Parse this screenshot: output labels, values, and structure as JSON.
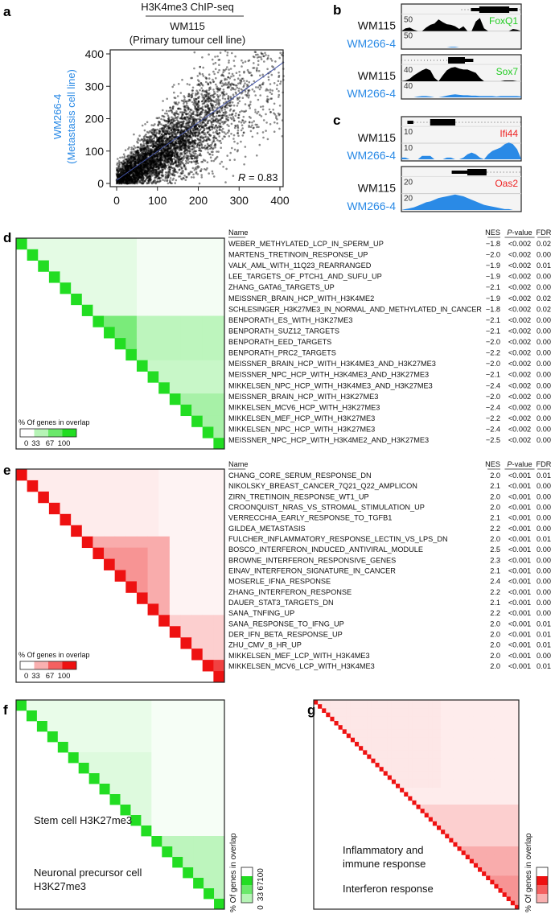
{
  "panels": {
    "a": "a",
    "b": "b",
    "c": "c",
    "d": "d",
    "e": "e",
    "f": "f",
    "g": "g"
  },
  "colors": {
    "green": "#22dd22",
    "red": "#ee1111",
    "blue": "#2a8ae6",
    "fit_line": "#4455aa"
  },
  "chart_data": [
    {
      "panel": "a",
      "type": "scatter",
      "title": "H3K4me3 ChIP-seq",
      "xlabel_line1": "WM115",
      "xlabel_line2": "(Primary tumour cell line)",
      "ylabel_line1": "WM266-4",
      "ylabel_line2": "(Metastasis cell line)",
      "xlim": [
        0,
        410
      ],
      "ylim": [
        0,
        410
      ],
      "xticks": [
        "0",
        "100",
        "200",
        "300",
        "400"
      ],
      "yticks": [
        "0",
        "100",
        "200",
        "300",
        "400"
      ],
      "fit_line": [
        [
          0,
          10
        ],
        [
          410,
          375
        ]
      ],
      "annotation_label": "R",
      "annotation_value": " = 0.83",
      "r": 0.83
    },
    {
      "panel": "b-c",
      "type": "area",
      "tracks": [
        {
          "gene": "FoxQ1",
          "gene_color": "#22cc22",
          "scale": "50",
          "sample1": "WM115",
          "sample2": "WM266-4",
          "wm115": [
            0,
            8,
            10,
            4,
            0,
            0,
            10,
            18,
            22,
            34,
            26,
            20,
            18,
            14,
            6,
            14,
            0,
            0,
            28,
            38,
            8,
            0,
            0,
            0,
            0,
            0,
            0,
            6,
            4,
            0
          ],
          "wm266": [
            0,
            0,
            0,
            0,
            0,
            0,
            0,
            0,
            0,
            0,
            0,
            0,
            2,
            2,
            0,
            0,
            0,
            0,
            0,
            0,
            0,
            0,
            0,
            0,
            0,
            0,
            0,
            0,
            0,
            0
          ]
        },
        {
          "gene": "Sox7",
          "gene_color": "#22cc22",
          "scale": "40",
          "sample1": "WM115",
          "sample2": "WM266-4",
          "wm115": [
            0,
            2,
            6,
            14,
            20,
            26,
            30,
            26,
            8,
            0,
            14,
            26,
            32,
            34,
            30,
            28,
            28,
            24,
            20,
            8,
            0,
            0,
            0,
            0,
            0,
            2,
            2,
            2,
            0,
            0
          ],
          "wm266": [
            0,
            0,
            0,
            0,
            2,
            3,
            3,
            2,
            0,
            0,
            2,
            4,
            6,
            7,
            6,
            5,
            5,
            4,
            4,
            3,
            3,
            3,
            3,
            2,
            3,
            3,
            3,
            3,
            3,
            2
          ]
        },
        {
          "gene": "Ifi44",
          "gene_color": "#ee2222",
          "scale": "10",
          "sample1": "WM115",
          "sample2": "WM266-4",
          "wm115": [
            0,
            0,
            0,
            0,
            0,
            0,
            0,
            0,
            0,
            0,
            0,
            0,
            0,
            0,
            0,
            0,
            0,
            0,
            0,
            0,
            0,
            0,
            0,
            0,
            0,
            0,
            0,
            0,
            0,
            0
          ],
          "wm266": [
            1,
            1,
            0,
            0,
            0,
            2,
            2,
            2,
            0,
            0,
            0,
            1,
            1,
            0,
            0,
            1,
            3,
            4,
            3,
            1,
            0,
            3,
            5,
            6,
            7,
            9,
            10,
            9,
            6,
            0
          ]
        },
        {
          "gene": "Oas2",
          "gene_color": "#ee2222",
          "scale": "20",
          "sample1": "WM115",
          "sample2": "WM266-4",
          "wm115": [
            0,
            0,
            0,
            0,
            0,
            0,
            0,
            0,
            0,
            0,
            0,
            0,
            0,
            0,
            0,
            0,
            0,
            0,
            0,
            0,
            0,
            0,
            0,
            0,
            0,
            0,
            0,
            0,
            0,
            0
          ],
          "wm266": [
            0,
            1,
            2,
            3,
            5,
            7,
            9,
            10,
            12,
            14,
            15,
            16,
            17,
            18,
            17,
            16,
            14,
            12,
            10,
            8,
            6,
            5,
            4,
            3,
            2,
            1,
            1,
            0,
            0,
            0
          ]
        }
      ]
    },
    {
      "panel": "d",
      "type": "heatmap",
      "color": "#22dd22",
      "background": 5,
      "legend_title": "% Of genes in overlap",
      "legend_ticks": [
        "0",
        "33",
        "67",
        "100"
      ],
      "blocks": [
        {
          "rows": [
            0,
            6
          ],
          "cols": [
            1,
            10
          ],
          "value": 12
        },
        {
          "rows": [
            7,
            10
          ],
          "cols": [
            7,
            10
          ],
          "value": 60
        },
        {
          "rows": [
            7,
            10
          ],
          "cols": [
            11,
            18
          ],
          "value": 30
        },
        {
          "rows": [
            11,
            18
          ],
          "cols": [
            11,
            18
          ],
          "value": 25
        },
        {
          "rows": [
            14,
            18
          ],
          "cols": [
            14,
            18
          ],
          "value": 40
        }
      ],
      "headers": {
        "name": "Name",
        "nes": "NES",
        "p": "P-value",
        "fdr": "FDR"
      },
      "rows": [
        [
          "WEBER_METHYLATED_LCP_IN_SPERM_UP",
          "−1.8",
          "<0.002",
          "0.02"
        ],
        [
          "MARTENS_TRETINOIN_RESPONSE_UP",
          "−2.0",
          "<0.002",
          "0.00"
        ],
        [
          "VALK_AML_WITH_11Q23_REARRANGED",
          "−1.9",
          "<0.002",
          "0.01"
        ],
        [
          "LEE_TARGETS_OF_PTCH1_AND_SUFU_UP",
          "−1.9",
          "<0.002",
          "0.00"
        ],
        [
          "ZHANG_GATA6_TARGETS_UP",
          "−2.1",
          "<0.002",
          "0.00"
        ],
        [
          "MEISSNER_BRAIN_HCP_WITH_H3K4ME2",
          "−1.9",
          "<0.002",
          "0.02"
        ],
        [
          "SCHLESINGER_H3K27ME3_IN_NORMAL_AND_METHYLATED_IN_CANCER",
          "−1.8",
          "<0.002",
          "0.02"
        ],
        [
          "BENPORATH_ES_WITH_H3K27ME3",
          "−2.1",
          "<0.002",
          "0.00"
        ],
        [
          "BENPORATH_SUZ12_TARGETS",
          "−2.1",
          "<0.002",
          "0.00"
        ],
        [
          "BENPORATH_EED_TARGETS",
          "−2.0",
          "<0.002",
          "0.00"
        ],
        [
          "BENPORATH_PRC2_TARGETS",
          "−2.2",
          "<0.002",
          "0.00"
        ],
        [
          "MEISSNER_BRAIN_HCP_WITH_H3K4ME3_AND_H3K27ME3",
          "−2.0",
          "<0.002",
          "0.00"
        ],
        [
          "MEISSNER_NPC_HCP_WITH_H3K4ME3_AND_H3K27ME3",
          "−2.1",
          "<0.002",
          "0.00"
        ],
        [
          "MIKKELSEN_NPC_HCP_WITH_H3K4ME3_AND_H3K27ME3",
          "−2.4",
          "<0.002",
          "0.00"
        ],
        [
          "MEISSNER_BRAIN_HCP_WITH_H3K27ME3",
          "−2.0",
          "<0.002",
          "0.00"
        ],
        [
          "MIKKELSEN_MCV6_HCP_WITH_H3K27ME3",
          "−2.4",
          "<0.002",
          "0.00"
        ],
        [
          "MIKKELSEN_MEF_HCP_WITH_H3K27ME3",
          "−2.2",
          "<0.002",
          "0.00"
        ],
        [
          "MIKKELSEN_NPC_HCP_WITH_H3K27ME3",
          "−2.4",
          "<0.002",
          "0.00"
        ],
        [
          "MEISSNER_NPC_HCP_WITH_H3K4ME2_AND_H3K27ME3",
          "−2.5",
          "<0.002",
          "0.00"
        ]
      ]
    },
    {
      "panel": "e",
      "type": "heatmap",
      "color": "#ee1111",
      "background": 5,
      "legend_title": "% Of genes in overlap",
      "legend_ticks": [
        "0",
        "33",
        "67",
        "100"
      ],
      "blocks": [
        {
          "rows": [
            0,
            5
          ],
          "cols": [
            1,
            12
          ],
          "value": 8
        },
        {
          "rows": [
            6,
            13
          ],
          "cols": [
            6,
            13
          ],
          "value": 35
        },
        {
          "rows": [
            7,
            10
          ],
          "cols": [
            7,
            11
          ],
          "value": 45
        },
        {
          "rows": [
            13,
            18
          ],
          "cols": [
            13,
            18
          ],
          "value": 20
        },
        {
          "rows": [
            17,
            18
          ],
          "cols": [
            17,
            18
          ],
          "value": 80
        }
      ],
      "headers": {
        "name": "Name",
        "nes": "NES",
        "p": "P-value",
        "fdr": "FDR"
      },
      "rows": [
        [
          "CHANG_CORE_SERUM_RESPONSE_DN",
          "2.0",
          "<0.001",
          "0.01"
        ],
        [
          "NIKOLSKY_BREAST_CANCER_7Q21_Q22_AMPLICON",
          "2.1",
          "<0.001",
          "0.00"
        ],
        [
          "ZIRN_TRETINOIN_RESPONSE_WT1_UP",
          "2.0",
          "<0.001",
          "0.00"
        ],
        [
          "CROONQUIST_NRAS_VS_STROMAL_STIMULATION_UP",
          "2.0",
          "<0.001",
          "0.00"
        ],
        [
          "VERRECCHIA_EARLY_RESPONSE_TO_TGFB1",
          "2.1",
          "<0.001",
          "0.00"
        ],
        [
          "GILDEA_METASTASIS",
          "2.2",
          "<0.001",
          "0.00"
        ],
        [
          "FULCHER_INFLAMMATORY_RESPONSE_LECTIN_VS_LPS_DN",
          "2.0",
          "<0.001",
          "0.01"
        ],
        [
          "BOSCO_INTERFERON_INDUCED_ANTIVIRAL_MODULE",
          "2.5",
          "<0.001",
          "0.00"
        ],
        [
          "BROWNE_INTERFERON_RESPONSIVE_GENES",
          "2.3",
          "<0.001",
          "0.00"
        ],
        [
          "EINAV_INTERFERON_SIGNATURE_IN_CANCER",
          "2.1",
          "<0.001",
          "0.00"
        ],
        [
          "MOSERLE_IFNA_RESPONSE",
          "2.4",
          "<0.001",
          "0.00"
        ],
        [
          "ZHANG_INTERFERON_RESPONSE",
          "2.2",
          "<0.001",
          "0.00"
        ],
        [
          "DAUER_STAT3_TARGETS_DN",
          "2.1",
          "<0.001",
          "0.00"
        ],
        [
          "SANA_TNFING_UP",
          "2.2",
          "<0.001",
          "0.00"
        ],
        [
          "SANA_RESPONSE_TO_IFNG_UP",
          "2.0",
          "<0.001",
          "0.01"
        ],
        [
          "DER_IFN_BETA_RESPONSE_UP",
          "2.0",
          "<0.001",
          "0.01"
        ],
        [
          "ZHU_CMV_8_HR_UP",
          "2.0",
          "<0.001",
          "0.01"
        ],
        [
          "MIKKELSEN_MEF_LCP_WITH_H3K4ME3",
          "2.0",
          "<0.001",
          "0.00"
        ],
        [
          "MIKKELSEN_MCV6_LCP_WITH_H3K4ME3",
          "2.0",
          "<0.001",
          "0.01"
        ]
      ]
    },
    {
      "panel": "f",
      "type": "heatmap",
      "color": "#22dd22",
      "background": 4,
      "size": 20,
      "legend_title": "% Of genes in overlap",
      "legend_ticks": [
        "0",
        "33",
        "67",
        "100"
      ],
      "blocks": [
        {
          "rows": [
            0,
            8
          ],
          "cols": [
            1,
            12
          ],
          "value": 10
        },
        {
          "rows": [
            5,
            12
          ],
          "cols": [
            5,
            12
          ],
          "value": 15
        },
        {
          "rows": [
            13,
            19
          ],
          "cols": [
            13,
            19
          ],
          "value": 30
        }
      ],
      "annotations": [
        "Stem cell H3K27me3",
        "Neuronal precursor cell",
        "H3K27me3"
      ]
    },
    {
      "panel": "g",
      "type": "heatmap",
      "color": "#ee1111",
      "background": 8,
      "size": 50,
      "legend_title": "% Of genes in overlap",
      "legend_ticks": [
        "0",
        "33",
        "67",
        "100"
      ],
      "blocks": [
        {
          "rows": [
            0,
            20
          ],
          "cols": [
            1,
            30
          ],
          "value": 10
        },
        {
          "rows": [
            25,
            49
          ],
          "cols": [
            25,
            49
          ],
          "value": 20
        },
        {
          "rows": [
            35,
            49
          ],
          "cols": [
            35,
            49
          ],
          "value": 35
        },
        {
          "rows": [
            42,
            49
          ],
          "cols": [
            42,
            49
          ],
          "value": 45
        }
      ],
      "annotations": [
        "Inflammatory and",
        "immune response",
        "Interferon response"
      ]
    }
  ]
}
